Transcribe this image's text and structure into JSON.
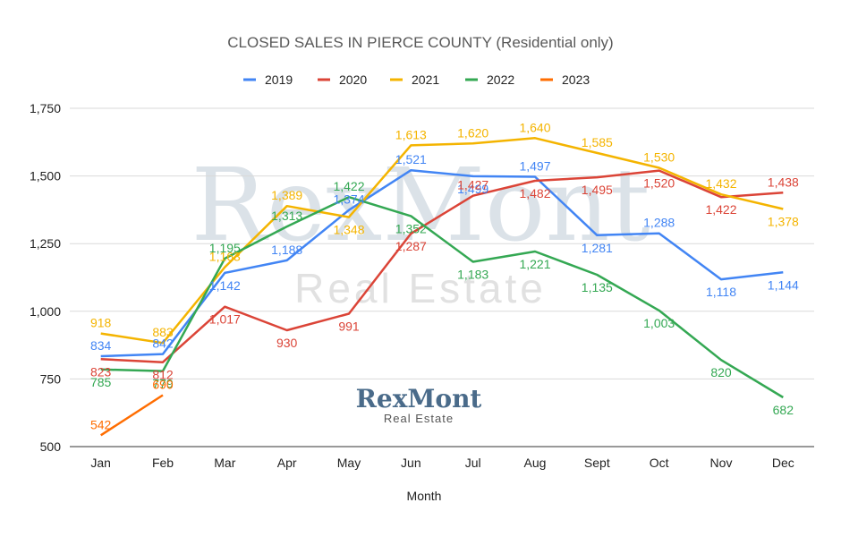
{
  "chart_data": {
    "type": "line",
    "title": "CLOSED SALES IN PIERCE COUNTY  (Residential only)",
    "xlabel": "Month",
    "ylabel": "",
    "categories": [
      "Jan",
      "Feb",
      "Mar",
      "Apr",
      "May",
      "Jun",
      "Jul",
      "Aug",
      "Sept",
      "Oct",
      "Nov",
      "Dec"
    ],
    "ylim": [
      500,
      1750
    ],
    "yticks": [
      500,
      750,
      1000,
      1250,
      1500,
      1750
    ],
    "ytick_labels": [
      "500",
      "750",
      "1,000",
      "1,250",
      "1,500",
      "1,750"
    ],
    "grid": true,
    "legend_position": "top",
    "series": [
      {
        "name": "2019",
        "color": "#4285f4",
        "values": [
          834,
          842,
          1142,
          1188,
          1374,
          1521,
          1499,
          1497,
          1281,
          1288,
          1118,
          1144
        ]
      },
      {
        "name": "2020",
        "color": "#db4437",
        "values": [
          823,
          812,
          1017,
          930,
          991,
          1287,
          1427,
          1482,
          1495,
          1520,
          1422,
          1438
        ]
      },
      {
        "name": "2021",
        "color": "#f4b400",
        "values": [
          918,
          883,
          1163,
          1389,
          1348,
          1613,
          1620,
          1640,
          1585,
          1530,
          1432,
          1378
        ]
      },
      {
        "name": "2022",
        "color": "#34a853",
        "values": [
          785,
          779,
          1195,
          1313,
          1422,
          1352,
          1183,
          1221,
          1135,
          1003,
          820,
          682
        ]
      },
      {
        "name": "2023",
        "color": "#ff6d01",
        "values": [
          542,
          690,
          null,
          null,
          null,
          null,
          null,
          null,
          null,
          null,
          null,
          null
        ]
      }
    ]
  },
  "watermark": {
    "main": "RexMont",
    "sub": "Real Estate"
  },
  "logo": {
    "main": "RexMont",
    "sub": "Real Estate"
  }
}
